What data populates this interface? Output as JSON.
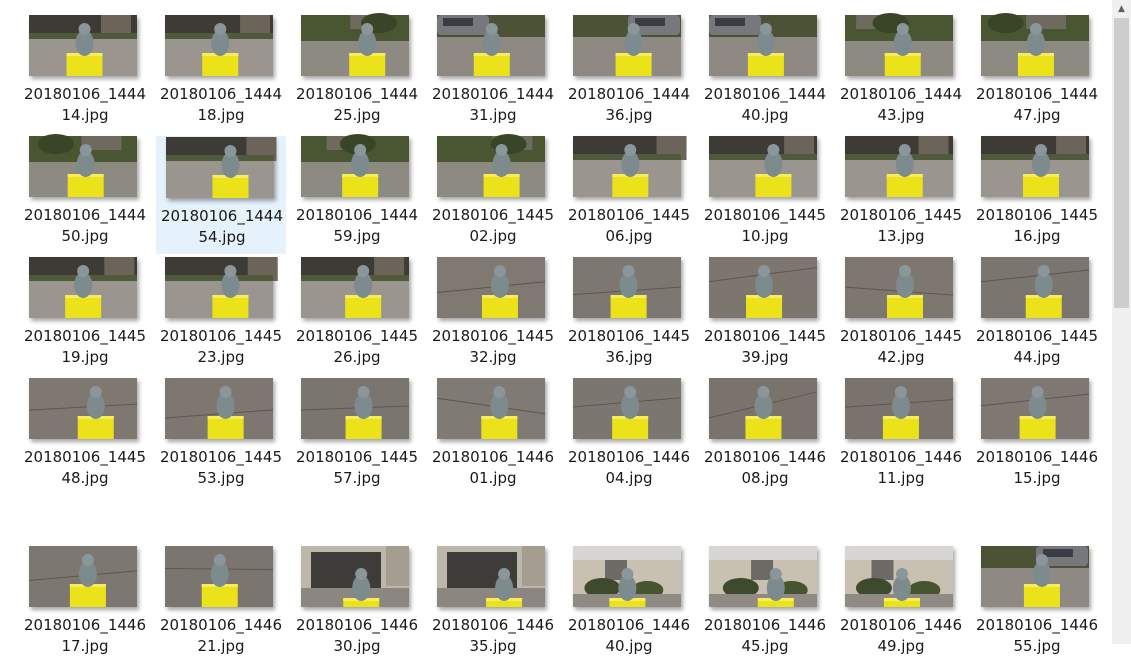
{
  "selected_index": 9,
  "scrollbar": {
    "up_arrow_icon": "chevron-up-icon"
  },
  "colors": {
    "selection_bg": "#e5f1fb",
    "box_yellow": "#ece21a",
    "pavement": "#8f8a84",
    "statue_gray": "#7d8a8e",
    "grass": "#5b6a3a"
  },
  "files": [
    {
      "line1": "20180106_1444",
      "line2": "14.jpg",
      "scene": "driveway"
    },
    {
      "line1": "20180106_1444",
      "line2": "18.jpg",
      "scene": "driveway"
    },
    {
      "line1": "20180106_1444",
      "line2": "25.jpg",
      "scene": "yard"
    },
    {
      "line1": "20180106_1444",
      "line2": "31.jpg",
      "scene": "car"
    },
    {
      "line1": "20180106_1444",
      "line2": "36.jpg",
      "scene": "car"
    },
    {
      "line1": "20180106_1444",
      "line2": "40.jpg",
      "scene": "car"
    },
    {
      "line1": "20180106_1444",
      "line2": "43.jpg",
      "scene": "yard"
    },
    {
      "line1": "20180106_1444",
      "line2": "47.jpg",
      "scene": "yard"
    },
    {
      "line1": "20180106_1444",
      "line2": "50.jpg",
      "scene": "yard"
    },
    {
      "line1": "20180106_1444",
      "line2": "54.jpg",
      "scene": "driveway"
    },
    {
      "line1": "20180106_1444",
      "line2": "59.jpg",
      "scene": "yard"
    },
    {
      "line1": "20180106_1445",
      "line2": "02.jpg",
      "scene": "yard"
    },
    {
      "line1": "20180106_1445",
      "line2": "06.jpg",
      "scene": "driveway"
    },
    {
      "line1": "20180106_1445",
      "line2": "10.jpg",
      "scene": "driveway"
    },
    {
      "line1": "20180106_1445",
      "line2": "13.jpg",
      "scene": "driveway"
    },
    {
      "line1": "20180106_1445",
      "line2": "16.jpg",
      "scene": "driveway"
    },
    {
      "line1": "20180106_1445",
      "line2": "19.jpg",
      "scene": "driveway"
    },
    {
      "line1": "20180106_1445",
      "line2": "23.jpg",
      "scene": "driveway"
    },
    {
      "line1": "20180106_1445",
      "line2": "26.jpg",
      "scene": "driveway"
    },
    {
      "line1": "20180106_1445",
      "line2": "32.jpg",
      "scene": "ground"
    },
    {
      "line1": "20180106_1445",
      "line2": "36.jpg",
      "scene": "ground"
    },
    {
      "line1": "20180106_1445",
      "line2": "39.jpg",
      "scene": "ground"
    },
    {
      "line1": "20180106_1445",
      "line2": "42.jpg",
      "scene": "ground"
    },
    {
      "line1": "20180106_1445",
      "line2": "44.jpg",
      "scene": "ground"
    },
    {
      "line1": "20180106_1445",
      "line2": "48.jpg",
      "scene": "ground"
    },
    {
      "line1": "20180106_1445",
      "line2": "53.jpg",
      "scene": "ground"
    },
    {
      "line1": "20180106_1445",
      "line2": "57.jpg",
      "scene": "ground"
    },
    {
      "line1": "20180106_1446",
      "line2": "01.jpg",
      "scene": "ground"
    },
    {
      "line1": "20180106_1446",
      "line2": "04.jpg",
      "scene": "ground"
    },
    {
      "line1": "20180106_1446",
      "line2": "08.jpg",
      "scene": "ground"
    },
    {
      "line1": "20180106_1446",
      "line2": "11.jpg",
      "scene": "ground"
    },
    {
      "line1": "20180106_1446",
      "line2": "15.jpg",
      "scene": "ground"
    },
    {
      "line1": "20180106_1446",
      "line2": "17.jpg",
      "scene": "ground"
    },
    {
      "line1": "20180106_1446",
      "line2": "21.jpg",
      "scene": "ground"
    },
    {
      "line1": "20180106_1446",
      "line2": "30.jpg",
      "scene": "garage"
    },
    {
      "line1": "20180106_1446",
      "line2": "35.jpg",
      "scene": "garage"
    },
    {
      "line1": "20180106_1446",
      "line2": "40.jpg",
      "scene": "house"
    },
    {
      "line1": "20180106_1446",
      "line2": "45.jpg",
      "scene": "house"
    },
    {
      "line1": "20180106_1446",
      "line2": "49.jpg",
      "scene": "house"
    },
    {
      "line1": "20180106_1446",
      "line2": "55.jpg",
      "scene": "car"
    }
  ]
}
